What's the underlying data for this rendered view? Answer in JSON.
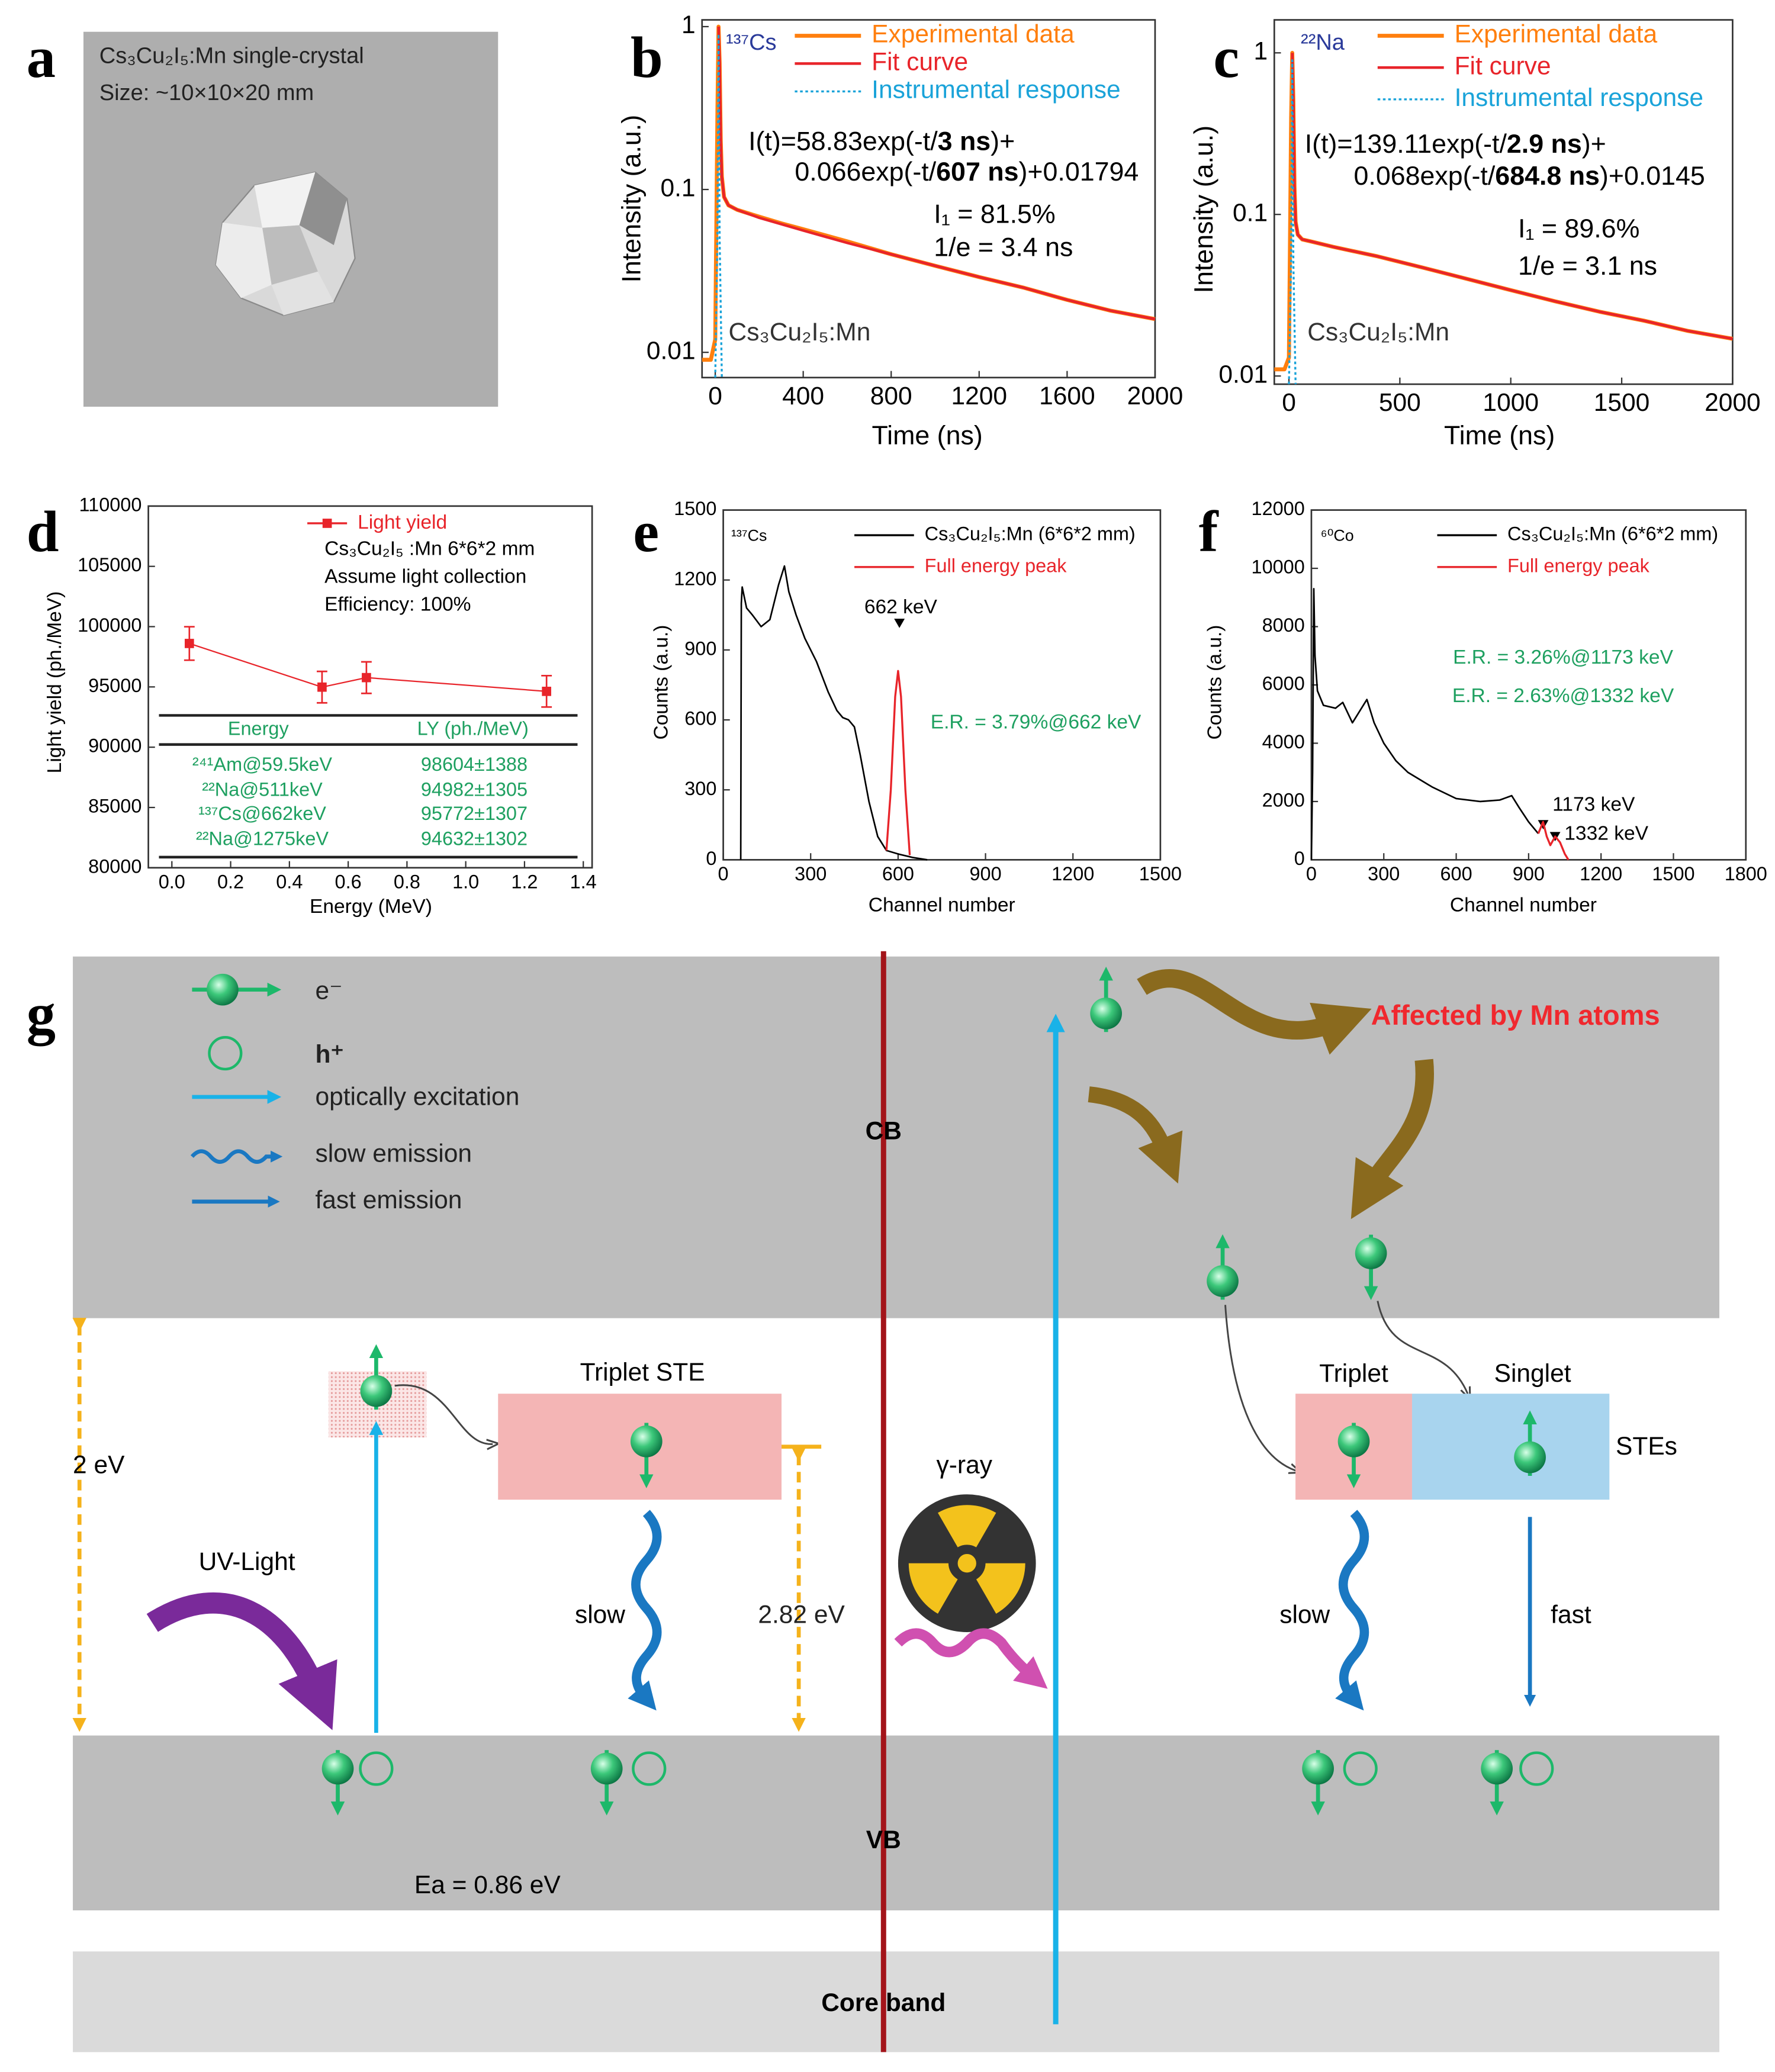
{
  "panel_labels": [
    "a",
    "b",
    "c",
    "d",
    "e",
    "f",
    "g"
  ],
  "photo": {
    "title": "Cs₃Cu₂I₅:Mn single-crystal",
    "size": "Size: ~10×10×20 mm"
  },
  "chart_data": [
    {
      "type": "line",
      "log_y": true,
      "xlabel": "Time (ns)",
      "ylabel": "Intensity (a.u.)",
      "xlim": [
        -60,
        2000
      ],
      "ylim": [
        0.007,
        1.1
      ],
      "xticks": [
        0,
        400,
        800,
        1200,
        1600,
        2000
      ],
      "yticks": [
        0.01,
        0.1,
        1
      ],
      "series": [
        {
          "name": "Experimental data",
          "color": "#ff7f0e",
          "x": [
            -60,
            -20,
            0,
            10,
            15,
            20,
            25,
            30,
            40,
            60,
            100,
            200,
            300,
            400,
            600,
            800,
            1000,
            1200,
            1400,
            1600,
            1800,
            2000
          ],
          "values": [
            0.009,
            0.009,
            0.012,
            0.3,
            1.0,
            0.6,
            0.2,
            0.12,
            0.09,
            0.08,
            0.075,
            0.068,
            0.062,
            0.057,
            0.048,
            0.04,
            0.034,
            0.029,
            0.025,
            0.021,
            0.018,
            0.016
          ]
        },
        {
          "name": "Fit curve",
          "color": "#e8242a",
          "x": [
            15,
            20,
            25,
            30,
            40,
            60,
            100,
            200,
            400,
            600,
            800,
            1000,
            1200,
            1400,
            1600,
            1800,
            2000
          ],
          "values": [
            1.0,
            0.6,
            0.2,
            0.12,
            0.09,
            0.08,
            0.075,
            0.067,
            0.056,
            0.047,
            0.04,
            0.034,
            0.029,
            0.025,
            0.021,
            0.018,
            0.016
          ]
        },
        {
          "name": "Instrumental response",
          "color": "#1aa3d9",
          "dashed": true,
          "x": [
            0,
            10,
            15,
            20,
            30
          ],
          "values": [
            0.007,
            0.05,
            0.9,
            0.05,
            0.007
          ]
        }
      ],
      "annotations": {
        "source": "¹³⁷Cs",
        "equation_1": [
          "I(t)=58.83exp(-t/",
          "3 ns",
          ")+"
        ],
        "equation_2": [
          "0.066exp(-t/",
          "607 ns",
          ")+0.01794"
        ],
        "fraction": "I₁ = 81.5%",
        "one_over_e": "1/e = 3.4 ns",
        "sample": "Cs₃Cu₂I₅:Mn"
      }
    },
    {
      "type": "line",
      "log_y": true,
      "xlabel": "Time (ns)",
      "ylabel": "Intensity (a.u.)",
      "xlim": [
        -66,
        2000
      ],
      "ylim": [
        0.0089,
        1.6
      ],
      "xticks": [
        0,
        500,
        1000,
        1500,
        2000
      ],
      "yticks": [
        0.01,
        0.1,
        1
      ],
      "series": [
        {
          "name": "Experimental data",
          "color": "#ff7f0e",
          "x": [
            -66,
            -20,
            0,
            10,
            15,
            20,
            25,
            30,
            40,
            60,
            100,
            200,
            400,
            600,
            800,
            1000,
            1200,
            1400,
            1600,
            1800,
            2000
          ],
          "values": [
            0.011,
            0.011,
            0.013,
            0.4,
            1.0,
            0.5,
            0.15,
            0.09,
            0.075,
            0.07,
            0.068,
            0.063,
            0.055,
            0.047,
            0.04,
            0.034,
            0.029,
            0.025,
            0.022,
            0.019,
            0.017
          ]
        },
        {
          "name": "Fit curve",
          "color": "#e8242a",
          "x": [
            15,
            20,
            25,
            30,
            40,
            60,
            100,
            200,
            400,
            600,
            800,
            1000,
            1200,
            1400,
            1600,
            1800,
            2000
          ],
          "values": [
            1.0,
            0.5,
            0.15,
            0.09,
            0.075,
            0.07,
            0.068,
            0.063,
            0.055,
            0.047,
            0.04,
            0.034,
            0.029,
            0.025,
            0.022,
            0.019,
            0.017
          ]
        },
        {
          "name": "Instrumental response",
          "color": "#1aa3d9",
          "dashed": true,
          "x": [
            0,
            10,
            15,
            20,
            30
          ],
          "values": [
            0.0089,
            0.05,
            0.9,
            0.05,
            0.0089
          ]
        }
      ],
      "annotations": {
        "source": "²²Na",
        "equation_1": [
          "I(t)=139.11exp(-t/",
          "2.9 ns",
          ")+"
        ],
        "equation_2": [
          "0.068exp(-t/",
          "684.8 ns",
          ")+0.0145"
        ],
        "fraction": "I₁ = 89.6%",
        "one_over_e": "1/e = 3.1 ns",
        "sample": "Cs₃Cu₂I₅:Mn"
      }
    },
    {
      "type": "line",
      "xlabel": "Energy (MeV)",
      "ylabel": "Light yield (ph./MeV)",
      "xlim": [
        -0.08,
        1.43
      ],
      "ylim": [
        80000,
        110000
      ],
      "xticks": [
        {
          "value": 0,
          "label": "0.0"
        },
        0.2,
        0.4,
        0.6,
        0.8,
        {
          "value": 1,
          "label": "1.0"
        },
        1.2,
        1.4
      ],
      "yticks": [
        80000,
        85000,
        90000,
        95000,
        100000,
        105000,
        110000
      ],
      "series": [
        {
          "name": "Light yield",
          "color": "#e8242a",
          "x": [
            0.0595,
            0.511,
            0.662,
            1.275
          ],
          "values": [
            98604,
            94982,
            95772,
            94632
          ],
          "errors": [
            1388,
            1305,
            1307,
            1302
          ]
        }
      ],
      "notes": [
        "Cs₃Cu₂I₅ :Mn 6*6*2 mm",
        "Assume light collection",
        "Efficiency: 100%"
      ],
      "table": {
        "header": [
          "Energy",
          "LY (ph./MeV)"
        ],
        "rows": [
          [
            "²⁴¹Am@59.5keV",
            "98604±1388"
          ],
          [
            "²²Na@511keV",
            "94982±1305"
          ],
          [
            "¹³⁷Cs@662keV",
            "95772±1307"
          ],
          [
            "²²Na@1275keV",
            "94632±1302"
          ]
        ]
      }
    },
    {
      "type": "line",
      "xlabel": "Channel number",
      "ylabel": "Counts (a.u.)",
      "xlim": [
        0,
        1500
      ],
      "ylim": [
        0,
        1500
      ],
      "xticks": [
        0,
        300,
        600,
        900,
        1200,
        1500
      ],
      "yticks": [
        0,
        300,
        600,
        900,
        1200,
        1500
      ],
      "series": [
        {
          "name": "Cs₃Cu₂I₅:Mn (6*6*2 mm)",
          "color": "#000000",
          "x": [
            60,
            62,
            65,
            80,
            100,
            130,
            160,
            190,
            210,
            225,
            250,
            280,
            320,
            360,
            390,
            410,
            430,
            450,
            470,
            500,
            530,
            560,
            600,
            650,
            700
          ],
          "values": [
            0,
            1100,
            1170,
            1080,
            1050,
            1000,
            1030,
            1180,
            1260,
            1150,
            1050,
            950,
            850,
            720,
            640,
            610,
            600,
            570,
            450,
            250,
            100,
            40,
            25,
            10,
            0
          ]
        },
        {
          "name": "Full energy peak",
          "color": "#e8242a",
          "x": [
            560,
            575,
            590,
            600,
            610,
            625,
            640
          ],
          "values": [
            40,
            300,
            700,
            810,
            700,
            300,
            20
          ]
        }
      ],
      "annotations": {
        "source": "¹³⁷Cs",
        "peak": "662 keV",
        "resolution": "E.R. = 3.79%@662 keV"
      }
    },
    {
      "type": "line",
      "xlabel": "Channel number",
      "ylabel": "Counts (a.u.)",
      "xlim": [
        0,
        1800
      ],
      "ylim": [
        0,
        12000
      ],
      "xticks": [
        0,
        300,
        600,
        900,
        1200,
        1500,
        1800
      ],
      "yticks": [
        0,
        2000,
        4000,
        6000,
        8000,
        10000,
        12000
      ],
      "series": [
        {
          "name": "Cs₃Cu₂I₅:Mn (6*6*2 mm)",
          "color": "#000000",
          "x": [
            0,
            5,
            10,
            15,
            25,
            50,
            100,
            130,
            170,
            200,
            230,
            260,
            300,
            350,
            400,
            500,
            600,
            700,
            780,
            830,
            860,
            900,
            940
          ],
          "values": [
            0,
            3000,
            9300,
            7000,
            5800,
            5300,
            5200,
            5400,
            4700,
            5100,
            5500,
            4700,
            4000,
            3400,
            3000,
            2500,
            2100,
            2000,
            2050,
            2200,
            1800,
            1300,
            900
          ]
        },
        {
          "name": "Full energy peak",
          "color": "#e8242a",
          "x": [
            940,
            960,
            975,
            990,
            1010,
            1030,
            1050,
            1065
          ],
          "values": [
            900,
            1300,
            800,
            500,
            800,
            600,
            200,
            0
          ]
        }
      ],
      "annotations": {
        "source": "⁶⁰Co",
        "peak_1": "1173 keV",
        "peak_2": "1332 keV",
        "resolution_1": "E.R. = 3.26%@1173 keV",
        "resolution_2": "E.R. = 2.63%@1332 keV"
      }
    }
  ],
  "diagram": {
    "legend": {
      "electron": "e⁻",
      "hole": "h⁺",
      "optical": "optically excitation",
      "slow": "slow emission",
      "fast": "fast emission"
    },
    "bands": {
      "cb": "CB",
      "vb": "VB",
      "core": "Core band"
    },
    "labels": {
      "mn": "Affected by Mn atoms",
      "gap": "2 eV",
      "triplet_ste": "Triplet STE",
      "uv": "UV-Light",
      "slow_left": "slow",
      "ste_energy": "2.82 eV",
      "gamma": "γ-ray",
      "activation": "Ea = 0.86 eV",
      "triplet": "Triplet",
      "singlet": "Singlet",
      "stes": "STEs",
      "slow_right": "slow",
      "fast": "fast"
    }
  }
}
